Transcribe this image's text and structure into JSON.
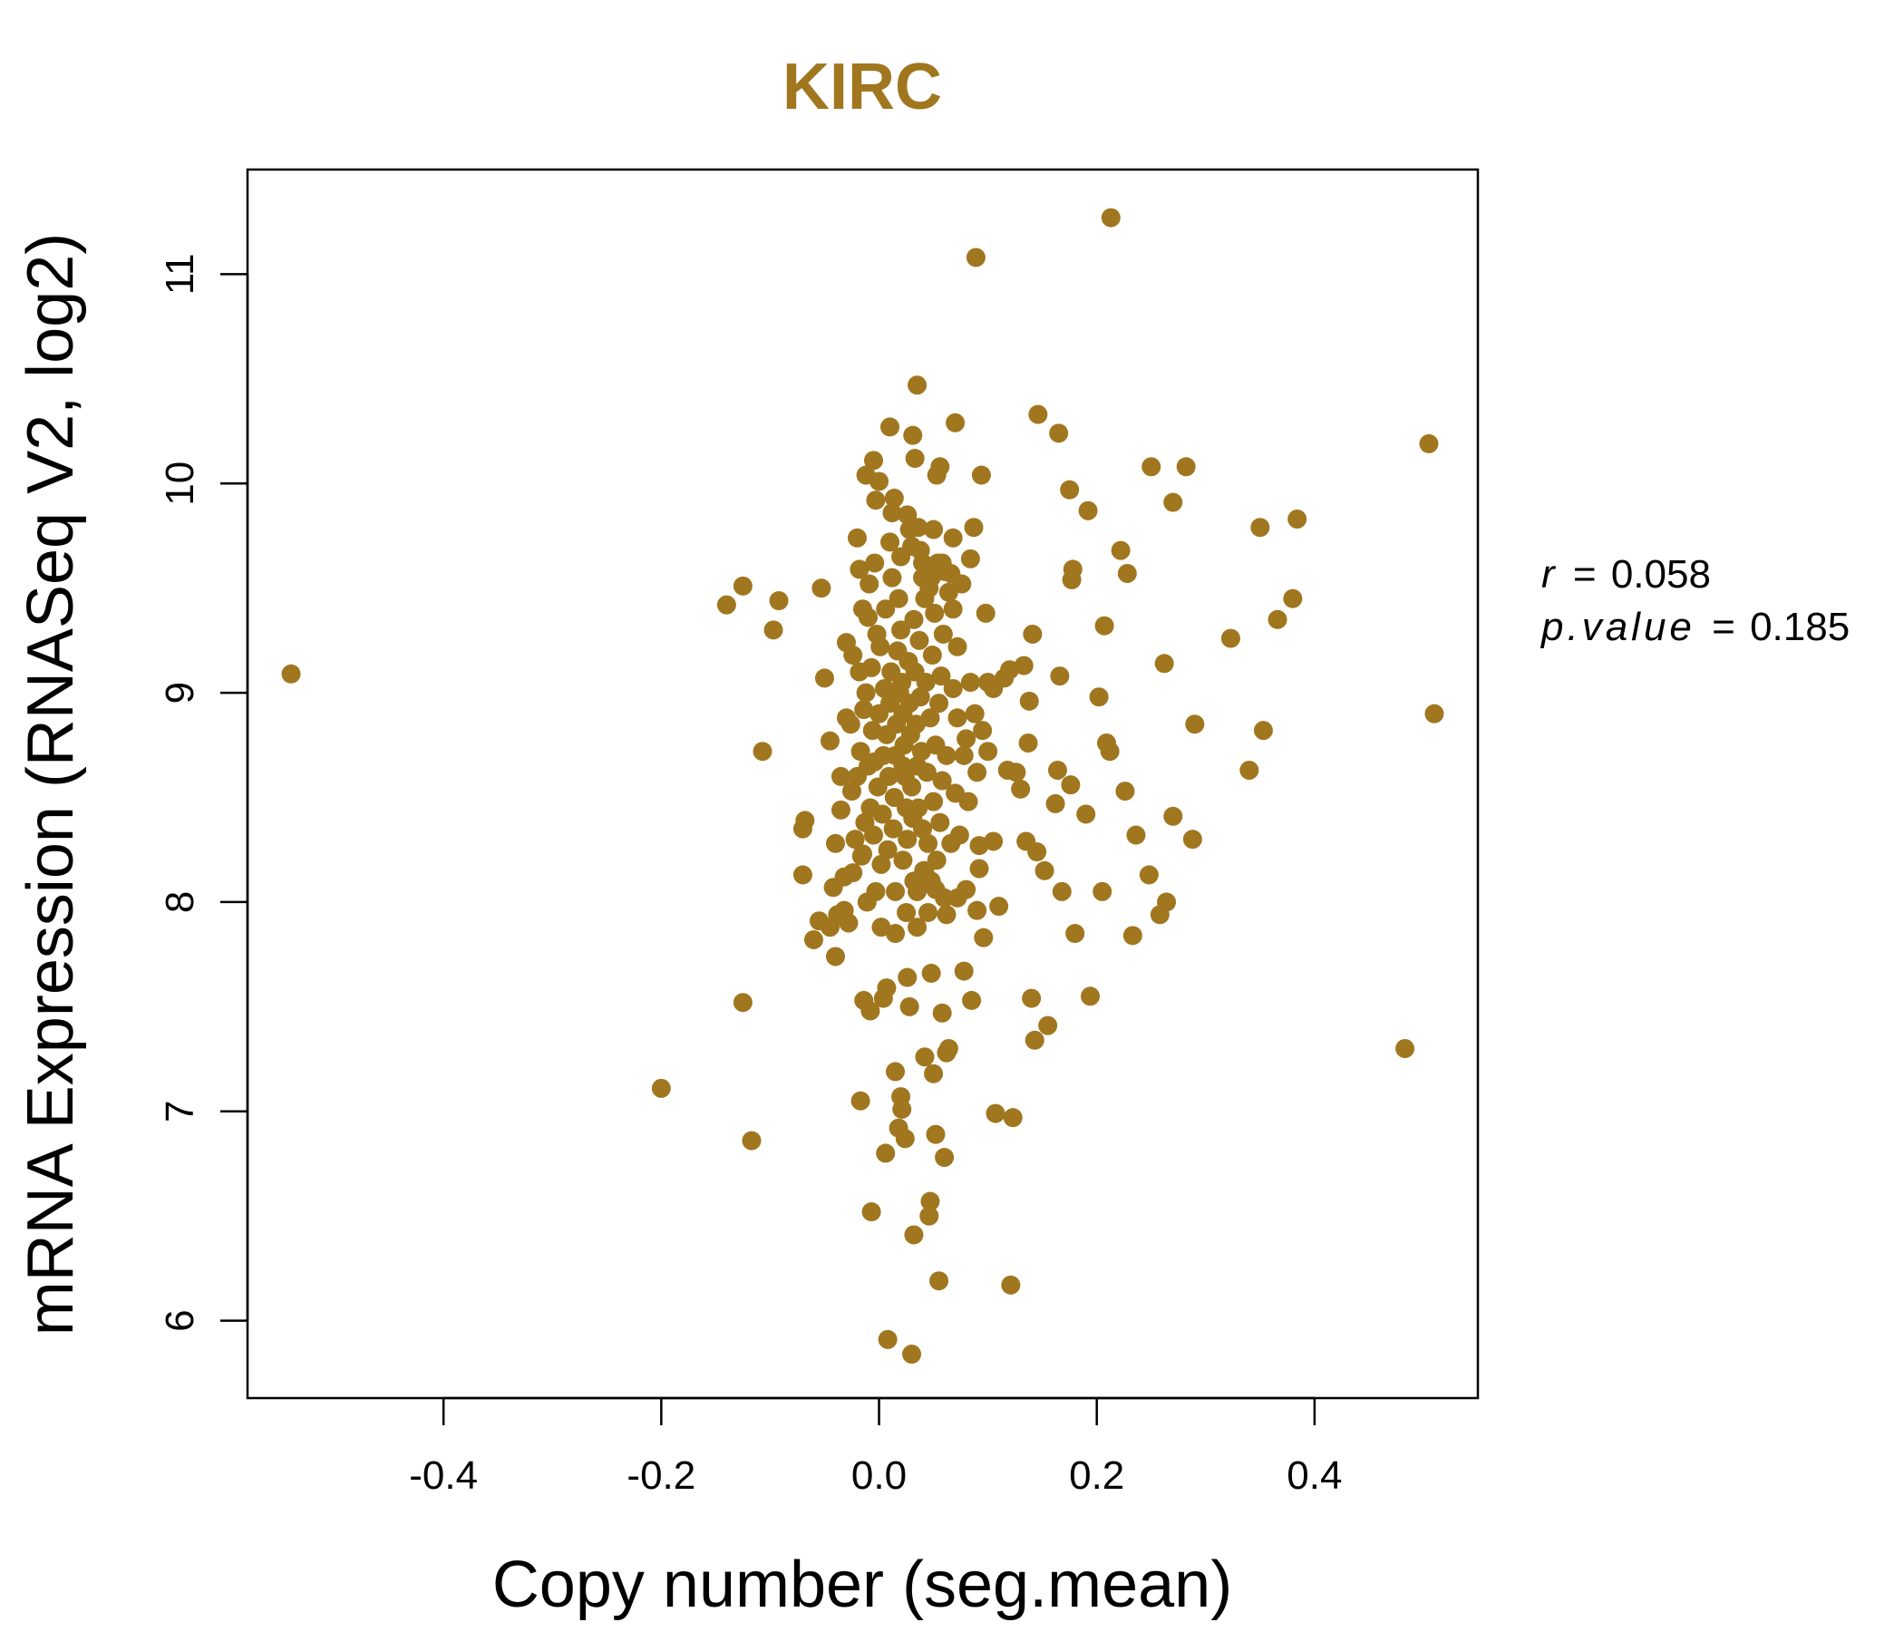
{
  "colors": {
    "point": "#A0761F",
    "title": "#A0761F",
    "axis": "#000000"
  },
  "chart_data": {
    "type": "scatter",
    "title": "KIRC",
    "xlabel": "Copy number (seg.mean)",
    "ylabel": "mRNA Expression (RNASeq V2, log2)",
    "xlim": [
      -0.58,
      0.55
    ],
    "ylim": [
      5.63,
      11.5
    ],
    "x_ticks": [
      -0.4,
      -0.2,
      0.0,
      0.2,
      0.4
    ],
    "x_tick_labels": [
      "-0.4",
      "-0.2",
      "0.0",
      "0.2",
      "0.4"
    ],
    "y_ticks": [
      6,
      7,
      8,
      9,
      10,
      11
    ],
    "y_tick_labels": [
      "6",
      "7",
      "8",
      "9",
      "10",
      "11"
    ],
    "stats": {
      "r_label": "r",
      "r_value": "0.058",
      "p_label": "p.value",
      "p_value": "0.185"
    },
    "series": [
      {
        "name": "samples",
        "points": [
          [
            -0.54,
            9.09
          ],
          [
            -0.2,
            7.11
          ],
          [
            -0.14,
            9.42
          ],
          [
            -0.125,
            9.51
          ],
          [
            -0.125,
            7.52
          ],
          [
            -0.117,
            6.86
          ],
          [
            -0.107,
            8.72
          ],
          [
            -0.097,
            9.3
          ],
          [
            -0.092,
            9.44
          ],
          [
            -0.07,
            8.35
          ],
          [
            -0.068,
            8.39
          ],
          [
            -0.07,
            8.13
          ],
          [
            -0.06,
            7.82
          ],
          [
            -0.055,
            7.91
          ],
          [
            -0.053,
            9.5
          ],
          [
            -0.05,
            9.07
          ],
          [
            -0.045,
            8.77
          ],
          [
            -0.042,
            8.07
          ],
          [
            -0.04,
            7.74
          ],
          [
            -0.035,
            8.44
          ],
          [
            -0.032,
            7.96
          ],
          [
            -0.03,
            9.24
          ],
          [
            -0.025,
            8.53
          ],
          [
            -0.024,
            8.14
          ],
          [
            -0.02,
            9.74
          ],
          [
            -0.018,
            9.59
          ],
          [
            -0.017,
            7.05
          ],
          [
            -0.015,
            8.23
          ],
          [
            -0.014,
            7.53
          ],
          [
            -0.012,
            10.04
          ],
          [
            -0.01,
            9.36
          ],
          [
            -0.008,
            7.48
          ],
          [
            -0.007,
            6.52
          ],
          [
            -0.005,
            10.11
          ],
          [
            -0.004,
            8.67
          ],
          [
            -0.003,
            9.92
          ],
          [
            0.0,
            10.01
          ],
          [
            0.002,
            7.88
          ],
          [
            0.004,
            7.54
          ],
          [
            0.006,
            6.8
          ],
          [
            0.007,
            7.59
          ],
          [
            0.008,
            5.91
          ],
          [
            0.01,
            10.27
          ],
          [
            0.012,
            9.86
          ],
          [
            0.014,
            9.93
          ],
          [
            0.015,
            7.19
          ],
          [
            0.018,
            6.92
          ],
          [
            0.02,
            7.07
          ],
          [
            0.021,
            7.01
          ],
          [
            0.022,
            8.65
          ],
          [
            0.024,
            6.87
          ],
          [
            0.026,
            7.64
          ],
          [
            0.028,
            7.5
          ],
          [
            0.03,
            5.84
          ],
          [
            0.031,
            10.23
          ],
          [
            0.032,
            6.41
          ],
          [
            0.033,
            10.12
          ],
          [
            0.035,
            10.47
          ],
          [
            0.036,
            9.79
          ],
          [
            0.04,
            9.55
          ],
          [
            0.042,
            7.26
          ],
          [
            0.046,
            6.5
          ],
          [
            0.047,
            6.57
          ],
          [
            0.048,
            7.66
          ],
          [
            0.05,
            7.18
          ],
          [
            0.052,
            6.89
          ],
          [
            0.053,
            10.04
          ],
          [
            0.055,
            6.19
          ],
          [
            0.056,
            10.08
          ],
          [
            0.058,
            7.47
          ],
          [
            0.06,
            6.78
          ],
          [
            0.062,
            7.28
          ],
          [
            0.064,
            7.3
          ],
          [
            0.066,
            9.57
          ],
          [
            0.068,
            9.4
          ],
          [
            0.07,
            10.29
          ],
          [
            0.072,
            9.22
          ],
          [
            0.078,
            7.67
          ],
          [
            0.08,
            8.78
          ],
          [
            0.084,
            9.64
          ],
          [
            0.085,
            7.53
          ],
          [
            0.087,
            9.79
          ],
          [
            0.089,
            11.08
          ],
          [
            0.09,
            7.96
          ],
          [
            0.092,
            8.16
          ],
          [
            0.094,
            10.04
          ],
          [
            0.096,
            7.83
          ],
          [
            0.098,
            9.38
          ],
          [
            0.1,
            9.05
          ],
          [
            0.105,
            8.29
          ],
          [
            0.107,
            6.99
          ],
          [
            0.11,
            7.98
          ],
          [
            0.115,
            9.07
          ],
          [
            0.118,
            8.63
          ],
          [
            0.12,
            9.11
          ],
          [
            0.121,
            6.17
          ],
          [
            0.123,
            6.97
          ],
          [
            0.126,
            8.62
          ],
          [
            0.13,
            8.54
          ],
          [
            0.133,
            9.13
          ],
          [
            0.135,
            8.29
          ],
          [
            0.137,
            8.76
          ],
          [
            0.138,
            8.96
          ],
          [
            0.14,
            7.54
          ],
          [
            0.141,
            9.28
          ],
          [
            0.143,
            7.34
          ],
          [
            0.145,
            8.24
          ],
          [
            0.146,
            10.33
          ],
          [
            0.152,
            8.15
          ],
          [
            0.155,
            7.41
          ],
          [
            0.162,
            8.47
          ],
          [
            0.164,
            8.63
          ],
          [
            0.165,
            10.24
          ],
          [
            0.166,
            9.08
          ],
          [
            0.168,
            8.05
          ],
          [
            0.175,
            9.97
          ],
          [
            0.176,
            8.56
          ],
          [
            0.177,
            9.54
          ],
          [
            0.178,
            9.59
          ],
          [
            0.18,
            7.85
          ],
          [
            0.19,
            8.42
          ],
          [
            0.192,
            9.87
          ],
          [
            0.194,
            7.55
          ],
          [
            0.202,
            8.98
          ],
          [
            0.205,
            8.05
          ],
          [
            0.207,
            9.32
          ],
          [
            0.209,
            8.76
          ],
          [
            0.212,
            8.72
          ],
          [
            0.213,
            11.27
          ],
          [
            0.222,
            9.68
          ],
          [
            0.226,
            8.53
          ],
          [
            0.228,
            9.57
          ],
          [
            0.233,
            7.84
          ],
          [
            0.236,
            8.32
          ],
          [
            0.248,
            8.13
          ],
          [
            0.25,
            10.08
          ],
          [
            0.258,
            7.94
          ],
          [
            0.262,
            9.14
          ],
          [
            0.264,
            8.0
          ],
          [
            0.27,
            8.41
          ],
          [
            0.27,
            9.91
          ],
          [
            0.282,
            10.08
          ],
          [
            0.288,
            8.3
          ],
          [
            0.29,
            8.85
          ],
          [
            0.323,
            9.26
          ],
          [
            0.34,
            8.63
          ],
          [
            0.35,
            9.79
          ],
          [
            0.353,
            8.82
          ],
          [
            0.366,
            9.35
          ],
          [
            0.38,
            9.45
          ],
          [
            0.384,
            9.83
          ],
          [
            0.483,
            7.3
          ],
          [
            0.505,
            10.19
          ],
          [
            0.51,
            8.9
          ],
          [
            0.02,
            9.3
          ],
          [
            0.021,
            9.05
          ],
          [
            0.022,
            8.9
          ],
          [
            0.023,
            8.75
          ],
          [
            0.024,
            8.6
          ],
          [
            0.025,
            8.45
          ],
          [
            0.026,
            8.3
          ],
          [
            0.027,
            9.15
          ],
          [
            0.028,
            8.95
          ],
          [
            0.029,
            8.8
          ],
          [
            0.03,
            8.55
          ],
          [
            0.031,
            8.4
          ],
          [
            0.018,
            9.45
          ],
          [
            0.017,
            9.2
          ],
          [
            0.016,
            8.85
          ],
          [
            0.015,
            8.7
          ],
          [
            0.014,
            8.5
          ],
          [
            0.013,
            8.35
          ],
          [
            0.019,
            9.0
          ],
          [
            0.032,
            9.35
          ],
          [
            0.033,
            9.1
          ],
          [
            0.034,
            8.85
          ],
          [
            0.035,
            8.65
          ],
          [
            0.036,
            8.45
          ],
          [
            0.012,
            9.55
          ],
          [
            0.011,
            9.1
          ],
          [
            0.01,
            8.95
          ],
          [
            0.009,
            8.6
          ],
          [
            0.008,
            8.25
          ],
          [
            0.007,
            8.8
          ],
          [
            0.037,
            9.25
          ],
          [
            0.038,
            8.98
          ],
          [
            0.039,
            8.72
          ],
          [
            0.04,
            8.35
          ],
          [
            0.041,
            8.15
          ],
          [
            0.042,
            9.45
          ],
          [
            0.006,
            9.4
          ],
          [
            0.005,
            9.02
          ],
          [
            0.004,
            8.7
          ],
          [
            0.003,
            8.42
          ],
          [
            0.002,
            8.18
          ],
          [
            0.001,
            9.22
          ],
          [
            0.043,
            9.05
          ],
          [
            0.044,
            8.62
          ],
          [
            0.045,
            8.28
          ],
          [
            0.046,
            9.5
          ],
          [
            0.047,
            8.88
          ],
          [
            0.048,
            8.1
          ],
          [
            0.0,
            8.9
          ],
          [
            -0.001,
            8.55
          ],
          [
            -0.002,
            9.28
          ],
          [
            -0.003,
            8.05
          ],
          [
            -0.004,
            9.62
          ],
          [
            -0.005,
            8.32
          ],
          [
            0.049,
            9.18
          ],
          [
            0.05,
            8.48
          ],
          [
            0.051,
            9.38
          ],
          [
            0.052,
            8.75
          ],
          [
            0.053,
            8.2
          ],
          [
            0.054,
            9.62
          ],
          [
            -0.006,
            8.82
          ],
          [
            -0.007,
            9.12
          ],
          [
            -0.008,
            8.45
          ],
          [
            -0.009,
            9.52
          ],
          [
            -0.01,
            8.65
          ],
          [
            -0.011,
            8.0
          ],
          [
            0.055,
            8.95
          ],
          [
            0.056,
            8.38
          ],
          [
            0.057,
            9.08
          ],
          [
            0.058,
            8.58
          ],
          [
            0.059,
            9.28
          ],
          [
            0.06,
            8.02
          ],
          [
            -0.012,
            9.0
          ],
          [
            -0.013,
            8.38
          ],
          [
            -0.014,
            8.92
          ],
          [
            -0.015,
            9.4
          ],
          [
            -0.016,
            8.22
          ],
          [
            -0.017,
            8.72
          ],
          [
            0.062,
            8.7
          ],
          [
            0.064,
            9.48
          ],
          [
            0.066,
            8.28
          ],
          [
            0.068,
            9.02
          ],
          [
            0.07,
            8.52
          ],
          [
            0.072,
            8.88
          ],
          [
            -0.018,
            9.1
          ],
          [
            -0.02,
            8.6
          ],
          [
            -0.022,
            8.3
          ],
          [
            -0.024,
            9.18
          ],
          [
            -0.026,
            8.85
          ],
          [
            -0.028,
            7.9
          ],
          [
            0.074,
            8.32
          ],
          [
            0.076,
            9.52
          ],
          [
            0.078,
            8.7
          ],
          [
            0.08,
            8.06
          ],
          [
            0.082,
            8.48
          ],
          [
            0.084,
            9.05
          ],
          [
            0.015,
            8.05
          ],
          [
            0.025,
            7.95
          ],
          [
            0.035,
            8.05
          ],
          [
            0.045,
            7.95
          ],
          [
            0.02,
            9.65
          ],
          [
            0.03,
            9.7
          ],
          [
            0.04,
            9.62
          ],
          [
            0.01,
            9.72
          ],
          [
            0.05,
            9.78
          ],
          [
            0.06,
            9.58
          ],
          [
            0.015,
            7.85
          ],
          [
            0.035,
            7.88
          ],
          [
            0.088,
            8.9
          ],
          [
            0.09,
            8.62
          ],
          [
            0.092,
            8.27
          ],
          [
            0.095,
            8.82
          ],
          [
            0.1,
            8.72
          ],
          [
            0.105,
            9.02
          ],
          [
            -0.03,
            8.88
          ],
          [
            -0.032,
            8.12
          ],
          [
            -0.035,
            8.6
          ],
          [
            -0.038,
            7.94
          ],
          [
            -0.04,
            8.28
          ],
          [
            -0.045,
            7.88
          ],
          [
            0.026,
            9.85
          ],
          [
            0.028,
            9.78
          ],
          [
            0.038,
            9.68
          ],
          [
            0.058,
            9.62
          ],
          [
            0.048,
            9.55
          ],
          [
            0.068,
            9.74
          ],
          [
            0.022,
            8.2
          ],
          [
            0.032,
            8.1
          ],
          [
            0.042,
            8.15
          ],
          [
            0.052,
            8.06
          ],
          [
            0.062,
            7.94
          ],
          [
            0.072,
            8.02
          ]
        ]
      }
    ]
  }
}
